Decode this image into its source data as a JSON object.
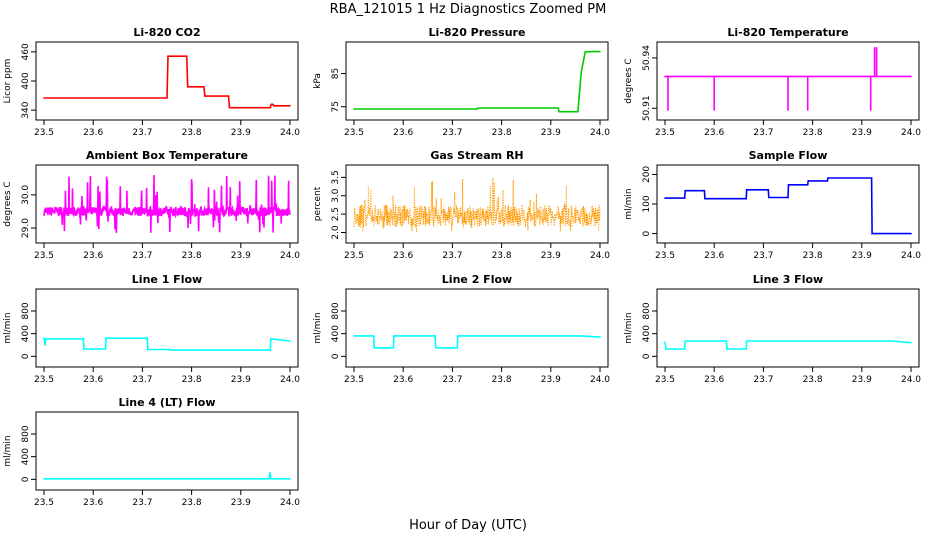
{
  "figure": {
    "title": "RBA_121015  1 Hz Diagnostics Zoomed PM",
    "xlabel": "Hour of Day (UTC)"
  },
  "chart_data": [
    {
      "type": "line",
      "title": "Li-820 CO2",
      "ylabel": "Licor ppm",
      "color": "#ff0000",
      "xlim": [
        23.5,
        24.0
      ],
      "ylim": [
        330,
        470
      ],
      "x_ticks": [
        "23.5",
        "23.6",
        "23.7",
        "23.8",
        "23.9",
        "24.0"
      ],
      "y_ticks": [
        {
          "value": 340,
          "label": "340"
        },
        {
          "value": 400,
          "label": "400"
        },
        {
          "value": 460,
          "label": "460"
        }
      ],
      "series": [
        {
          "x": [
            23.5,
            23.75,
            23.752,
            23.79,
            23.792,
            23.825,
            23.827,
            23.875,
            23.877,
            23.96,
            23.962,
            23.965,
            23.967,
            24.0
          ],
          "y": [
            365,
            365,
            451,
            451,
            388,
            388,
            369,
            369,
            345,
            345,
            352,
            352,
            349,
            349
          ]
        }
      ]
    },
    {
      "type": "line",
      "title": "Li-820 Pressure",
      "ylabel": "kPa",
      "color": "#00cc00",
      "xlim": [
        23.5,
        24.0
      ],
      "ylim": [
        72.5,
        93
      ],
      "x_ticks": [
        "23.5",
        "23.6",
        "23.7",
        "23.8",
        "23.9",
        "24.0"
      ],
      "y_ticks": [
        {
          "value": 75,
          "label": "75"
        },
        {
          "value": 85,
          "label": "85"
        }
      ],
      "series": [
        {
          "x": [
            23.5,
            23.75,
            23.752,
            23.915,
            23.917,
            23.955,
            23.962,
            23.97,
            23.985,
            24.0
          ],
          "y": [
            74.3,
            74.3,
            74.6,
            74.6,
            73.5,
            73.5,
            85.5,
            91.5,
            91.6,
            91.6
          ]
        }
      ]
    },
    {
      "type": "line",
      "title": "Li-820 Temperature",
      "ylabel": "degrees C",
      "color": "#ff00ff",
      "xlim": [
        23.5,
        24.0
      ],
      "ylim": [
        50.906,
        50.9465
      ],
      "x_ticks": [
        "23.5",
        "23.6",
        "23.7",
        "23.8",
        "23.9",
        "24.0"
      ],
      "y_ticks": [
        {
          "value": 50.91,
          "label": "50.91"
        },
        {
          "value": 50.94,
          "label": "50.94"
        }
      ],
      "series": [
        {
          "x": [
            23.5,
            23.506,
            23.506,
            23.506,
            23.6,
            23.6,
            23.6,
            23.75,
            23.75,
            23.75,
            23.79,
            23.79,
            23.79,
            23.918,
            23.918,
            23.918,
            23.926,
            23.926,
            23.926,
            23.93,
            23.93,
            23.93,
            24.0
          ],
          "y": [
            50.929,
            50.929,
            50.909,
            50.929,
            50.929,
            50.909,
            50.929,
            50.929,
            50.909,
            50.929,
            50.929,
            50.909,
            50.929,
            50.929,
            50.909,
            50.929,
            50.929,
            50.946,
            50.929,
            50.929,
            50.946,
            50.929,
            50.929
          ]
        }
      ]
    },
    {
      "type": "line",
      "title": "Ambient Box Temperature",
      "ylabel": "degrees C",
      "color": "#ff00ff",
      "xlim": [
        23.5,
        24.0
      ],
      "ylim": [
        28.7,
        30.75
      ],
      "x_ticks": [
        "23.5",
        "23.6",
        "23.7",
        "23.8",
        "23.9",
        "24.0"
      ],
      "y_ticks": [
        {
          "value": 29.0,
          "label": "29.0"
        },
        {
          "value": 30.0,
          "label": "30.0"
        }
      ],
      "noise": {
        "center": 29.5,
        "spread": 0.14,
        "spike_max": 30.6,
        "spike_min": 28.85,
        "seed": 7
      },
      "series": [
        {
          "x": [
            23.5,
            24.0
          ],
          "y": [
            29.5,
            29.5
          ]
        }
      ]
    },
    {
      "type": "scatter",
      "title": "Gas Stream RH",
      "ylabel": "percent",
      "color": "#ff9900",
      "xlim": [
        23.5,
        24.0
      ],
      "ylim": [
        1.85,
        3.7
      ],
      "x_ticks": [
        "23.5",
        "23.6",
        "23.7",
        "23.8",
        "23.9",
        "24.0"
      ],
      "y_ticks": [
        {
          "value": 2.0,
          "label": "2.0"
        },
        {
          "value": 2.5,
          "label": "2.5"
        },
        {
          "value": 3.0,
          "label": "3.0"
        },
        {
          "value": 3.5,
          "label": "3.5"
        }
      ],
      "noise": {
        "center": 2.45,
        "spread": 0.3,
        "spike_max": 3.5,
        "spike_min": 2.0,
        "seed": 11
      },
      "series": [
        {
          "x": [
            23.5,
            24.0
          ],
          "y": [
            2.45,
            2.45
          ]
        }
      ]
    },
    {
      "type": "line",
      "title": "Sample Flow",
      "ylabel": "ml/min",
      "color": "#0000ff",
      "xlim": [
        23.5,
        24.0
      ],
      "ylim": [
        -15,
        215
      ],
      "x_ticks": [
        "23.5",
        "23.6",
        "23.7",
        "23.8",
        "23.9",
        "24.0"
      ],
      "y_ticks": [
        {
          "value": 0,
          "label": "0"
        },
        {
          "value": 100,
          "label": "100"
        },
        {
          "value": 200,
          "label": "200"
        }
      ],
      "series": [
        {
          "x": [
            23.5,
            23.54,
            23.541,
            23.58,
            23.581,
            23.665,
            23.666,
            23.71,
            23.711,
            23.75,
            23.751,
            23.79,
            23.791,
            23.83,
            23.831,
            23.92,
            23.921,
            24.0
          ],
          "y": [
            120,
            120,
            145,
            145,
            118,
            118,
            148,
            148,
            122,
            122,
            165,
            165,
            178,
            178,
            188,
            188,
            0,
            0
          ]
        }
      ]
    },
    {
      "type": "line",
      "title": "Line 1 Flow",
      "ylabel": "ml/min",
      "color": "#00ffff",
      "xlim": [
        23.5,
        24.0
      ],
      "ylim": [
        -100,
        1100
      ],
      "x_ticks": [
        "23.5",
        "23.6",
        "23.7",
        "23.8",
        "23.9",
        "24.0"
      ],
      "y_ticks": [
        {
          "value": 0,
          "label": "0"
        },
        {
          "value": 400,
          "label": "400"
        },
        {
          "value": 800,
          "label": "800"
        }
      ],
      "series": [
        {
          "x": [
            23.5,
            23.502,
            23.504,
            23.58,
            23.581,
            23.625,
            23.626,
            23.71,
            23.711,
            23.755,
            23.756,
            23.96,
            23.961,
            24.0
          ],
          "y": [
            320,
            200,
            310,
            310,
            130,
            130,
            320,
            320,
            120,
            120,
            110,
            110,
            310,
            270
          ]
        }
      ]
    },
    {
      "type": "line",
      "title": "Line 2 Flow",
      "ylabel": "ml/min",
      "color": "#00ffff",
      "xlim": [
        23.5,
        24.0
      ],
      "ylim": [
        -100,
        1100
      ],
      "x_ticks": [
        "23.5",
        "23.6",
        "23.7",
        "23.8",
        "23.9",
        "24.0"
      ],
      "y_ticks": [
        {
          "value": 0,
          "label": "0"
        },
        {
          "value": 400,
          "label": "400"
        },
        {
          "value": 800,
          "label": "800"
        }
      ],
      "series": [
        {
          "x": [
            23.5,
            23.54,
            23.541,
            23.58,
            23.581,
            23.665,
            23.666,
            23.71,
            23.711,
            23.96,
            24.0
          ],
          "y": [
            360,
            360,
            150,
            150,
            360,
            360,
            150,
            150,
            360,
            360,
            340
          ]
        }
      ]
    },
    {
      "type": "line",
      "title": "Line 3 Flow",
      "ylabel": "ml/min",
      "color": "#00ffff",
      "xlim": [
        23.5,
        24.0
      ],
      "ylim": [
        -100,
        1100
      ],
      "x_ticks": [
        "23.5",
        "23.6",
        "23.7",
        "23.8",
        "23.9",
        "24.0"
      ],
      "y_ticks": [
        {
          "value": 0,
          "label": "0"
        },
        {
          "value": 400,
          "label": "400"
        },
        {
          "value": 800,
          "label": "800"
        }
      ],
      "series": [
        {
          "x": [
            23.5,
            23.502,
            23.504,
            23.54,
            23.541,
            23.625,
            23.626,
            23.665,
            23.666,
            23.96,
            24.0
          ],
          "y": [
            250,
            130,
            130,
            130,
            270,
            270,
            130,
            130,
            270,
            270,
            240
          ]
        }
      ]
    },
    {
      "type": "line",
      "title": "Line 4 (LT) Flow",
      "ylabel": "ml/min",
      "color": "#00ffff",
      "xlim": [
        23.5,
        24.0
      ],
      "ylim": [
        -100,
        1100
      ],
      "x_ticks": [
        "23.5",
        "23.6",
        "23.7",
        "23.8",
        "23.9",
        "24.0"
      ],
      "y_ticks": [
        {
          "value": 0,
          "label": "0"
        },
        {
          "value": 400,
          "label": "400"
        },
        {
          "value": 800,
          "label": "800"
        }
      ],
      "series": [
        {
          "x": [
            23.5,
            23.958,
            23.959,
            23.961,
            23.963,
            24.0
          ],
          "y": [
            10,
            10,
            120,
            20,
            10,
            10
          ]
        }
      ]
    }
  ]
}
